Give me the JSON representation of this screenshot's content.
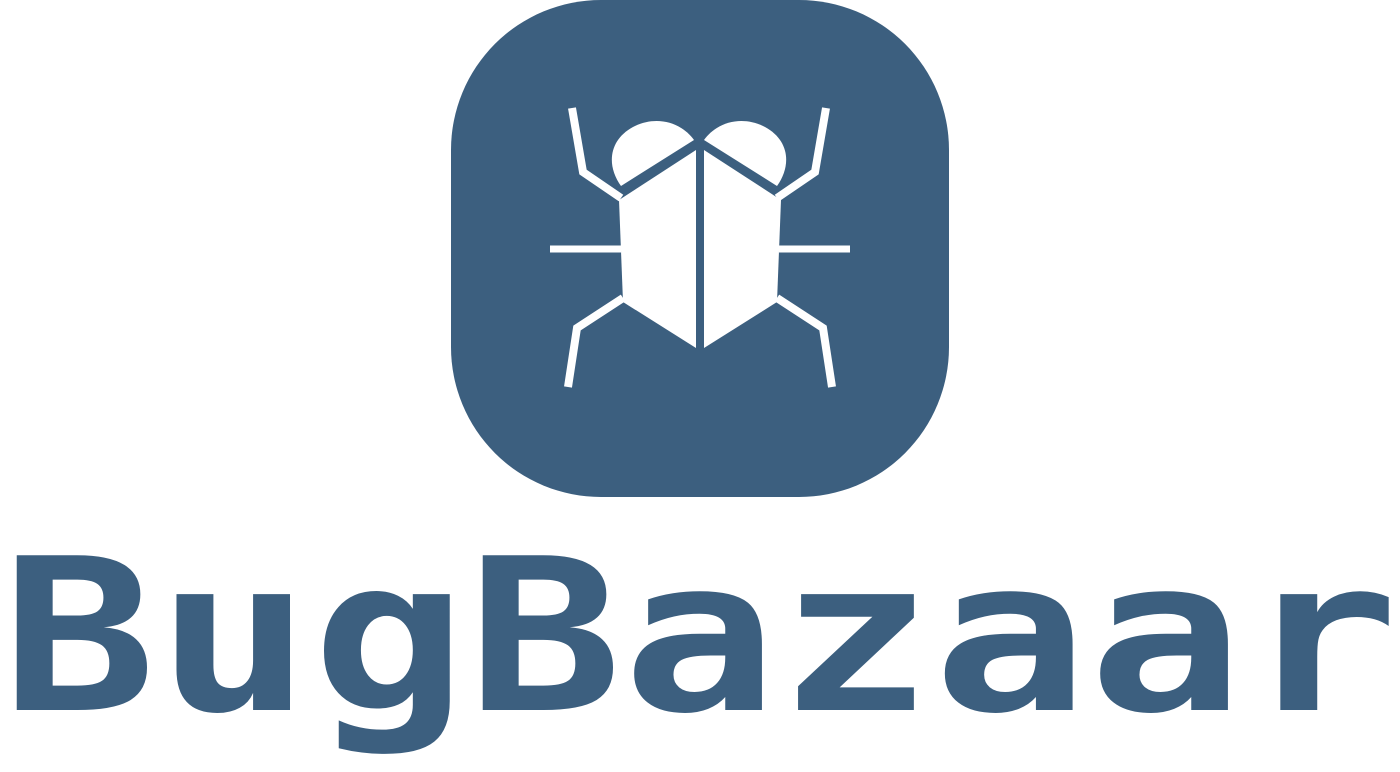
{
  "brand": {
    "name": "BugBazaar",
    "colors": {
      "primary": "#3c5f7f",
      "icon_fg": "#ffffff",
      "background": "#ffffff"
    },
    "icon": "bug-icon"
  }
}
